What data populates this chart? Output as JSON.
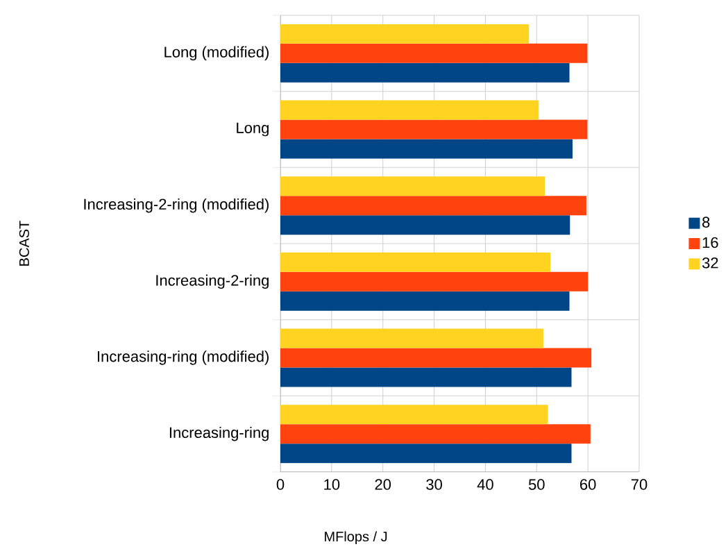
{
  "chart_data": {
    "type": "bar",
    "orientation": "horizontal",
    "xlabel": "MFlops / J",
    "ylabel": "BCAST",
    "categories": [
      "Long (modified)",
      "Long",
      "Increasing-2-ring (modified)",
      "Increasing-2-ring",
      "Increasing-ring (modified)",
      "Increasing-ring"
    ],
    "series": [
      {
        "name": "8",
        "color": "#004586",
        "values": [
          56.4,
          57.0,
          56.5,
          56.4,
          56.8,
          56.8
        ]
      },
      {
        "name": "16",
        "color": "#ff420e",
        "values": [
          59.9,
          59.9,
          59.7,
          60.0,
          60.7,
          60.5
        ]
      },
      {
        "name": "32",
        "color": "#ffd320",
        "values": [
          48.5,
          50.4,
          51.6,
          52.7,
          51.3,
          52.2
        ]
      }
    ],
    "xlim": [
      0,
      70
    ],
    "xticks": [
      0,
      10,
      20,
      30,
      40,
      50,
      60,
      70
    ],
    "grid": true,
    "legend": "right"
  }
}
